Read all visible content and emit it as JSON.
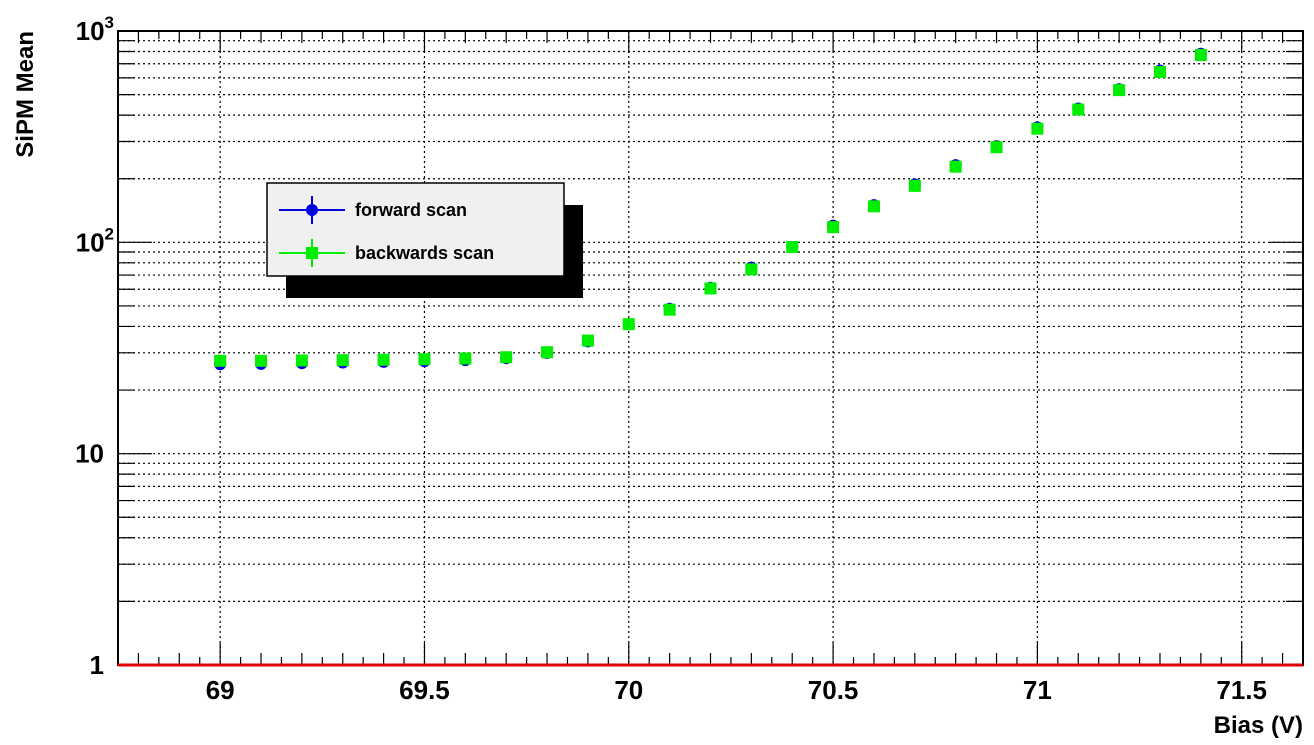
{
  "chart_data": {
    "type": "scatter",
    "title": "",
    "xlabel": "Bias (V)",
    "ylabel": "SiPM Mean",
    "xlim": [
      68.75,
      71.65
    ],
    "ylim": [
      1,
      1000
    ],
    "y_scale": "log",
    "grid": true,
    "legend_position": "upper-left",
    "x_ticks": [
      "69",
      "69.5",
      "70",
      "70.5",
      "71",
      "71.5"
    ],
    "x_tick_values": [
      69,
      69.5,
      70,
      70.5,
      71,
      71.5
    ],
    "y_ticks": [
      {
        "value": 1,
        "label": "1"
      },
      {
        "value": 10,
        "label": "10"
      },
      {
        "value": 100,
        "label": "10",
        "exp": "2"
      },
      {
        "value": 1000,
        "label": "10",
        "exp": "3"
      }
    ],
    "series": [
      {
        "name": "forward scan",
        "color": "#0000e0",
        "marker": "circle",
        "x": [
          69.0,
          69.1,
          69.2,
          69.3,
          69.4,
          69.5,
          69.6,
          69.7,
          69.8,
          69.9,
          70.0,
          70.1,
          70.2,
          70.3,
          70.4,
          70.5,
          70.6,
          70.7,
          70.8,
          70.9,
          71.0,
          71.1,
          71.2,
          71.3,
          71.4
        ],
        "y": [
          26.5,
          26.6,
          26.8,
          27.0,
          27.2,
          27.4,
          27.7,
          28.3,
          30.0,
          34.0,
          41.0,
          48.5,
          61.0,
          76.0,
          95.0,
          120.0,
          150.0,
          188.0,
          232.0,
          285.0,
          350.0,
          430.0,
          530.0,
          650.0,
          780.0
        ]
      },
      {
        "name": "backwards scan",
        "color": "#00ee00",
        "marker": "square",
        "x": [
          69.0,
          69.1,
          69.2,
          69.3,
          69.4,
          69.5,
          69.6,
          69.7,
          69.8,
          69.9,
          70.0,
          70.1,
          70.2,
          70.3,
          70.4,
          70.5,
          70.6,
          70.7,
          70.8,
          70.9,
          71.0,
          71.1,
          71.2,
          71.3,
          71.4
        ],
        "y": [
          27.5,
          27.5,
          27.6,
          27.7,
          27.8,
          28.0,
          28.2,
          28.6,
          30.2,
          34.3,
          41.0,
          48.0,
          60.5,
          74.5,
          95.0,
          118.0,
          148.0,
          185.0,
          228.0,
          282.0,
          345.0,
          425.0,
          525.0,
          640.0,
          770.0
        ]
      }
    ]
  },
  "colors": {
    "frame": "#000000",
    "bottom_axis": "#e00000",
    "grid": "#000000",
    "legend_bg": "#f0f0f0",
    "legend_shadow": "#000000"
  }
}
